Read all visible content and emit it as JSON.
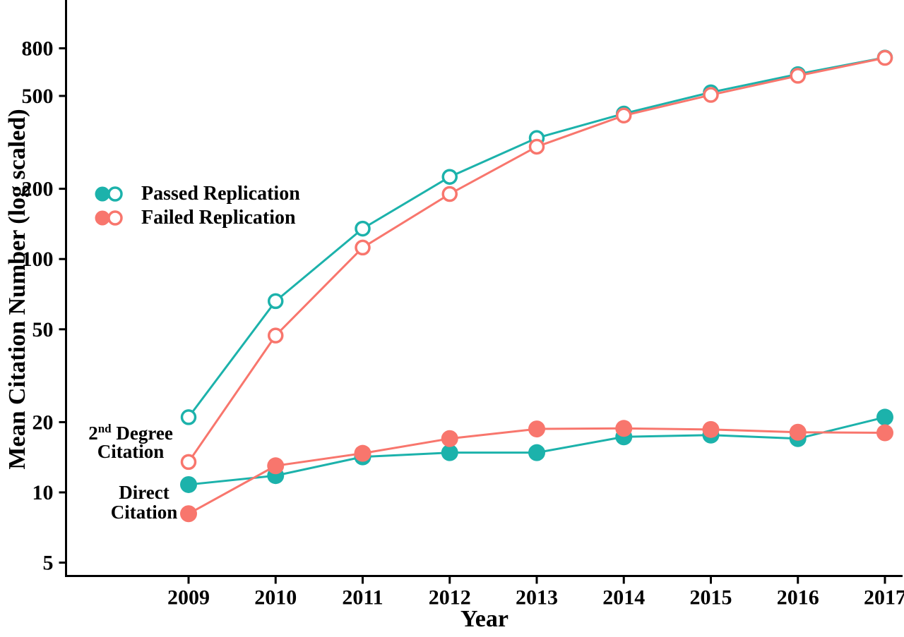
{
  "figure": {
    "background": "#ffffff",
    "x_axis_title": "Year",
    "y_axis_title": "Mean Citation Number (log scaled)"
  },
  "colors": {
    "passed": "#1CB2AB",
    "failed": "#F8766D",
    "axis": "#000000",
    "open_marker_fill": "#ffffff"
  },
  "legend": {
    "items": [
      {
        "label": "Passed Replication",
        "color": "#1CB2AB"
      },
      {
        "label": "Failed Replication",
        "color": "#F8766D"
      }
    ]
  },
  "annotations": {
    "second_degree": {
      "num": "2",
      "sup": "nd",
      "rest": " Degree",
      "line2": "Citation"
    },
    "direct": {
      "line1": "Direct",
      "line2": "Citation"
    }
  },
  "chart_data": {
    "type": "line",
    "title": "",
    "xlabel": "Year",
    "ylabel": "Mean Citation Number (log scaled)",
    "y_scale": "log",
    "ylim": [
      4.5,
      1100
    ],
    "y_ticks": [
      5,
      10,
      20,
      50,
      100,
      200,
      500,
      800
    ],
    "x": [
      2009,
      2010,
      2011,
      2012,
      2013,
      2014,
      2015,
      2016,
      2017
    ],
    "grid": false,
    "legend_position": "upper-left-inside",
    "series": [
      {
        "name": "Passed Replication - 2nd Degree Citation",
        "color": "#1CB2AB",
        "marker": "open",
        "values": [
          21,
          66,
          135,
          225,
          330,
          420,
          518,
          620,
          730
        ]
      },
      {
        "name": "Failed Replication - 2nd Degree Citation",
        "color": "#F8766D",
        "marker": "open",
        "values": [
          13.5,
          47,
          112,
          190,
          303,
          412,
          505,
          610,
          728
        ]
      },
      {
        "name": "Passed Replication - Direct Citation",
        "color": "#1CB2AB",
        "marker": "filled",
        "values": [
          10.8,
          11.8,
          14.2,
          14.8,
          14.8,
          17.3,
          17.6,
          17.0,
          21
        ]
      },
      {
        "name": "Failed Replication - Direct Citation",
        "color": "#F8766D",
        "marker": "filled",
        "values": [
          8.1,
          13.0,
          14.7,
          17.0,
          18.7,
          18.8,
          18.6,
          18.1,
          18.0
        ]
      }
    ]
  }
}
